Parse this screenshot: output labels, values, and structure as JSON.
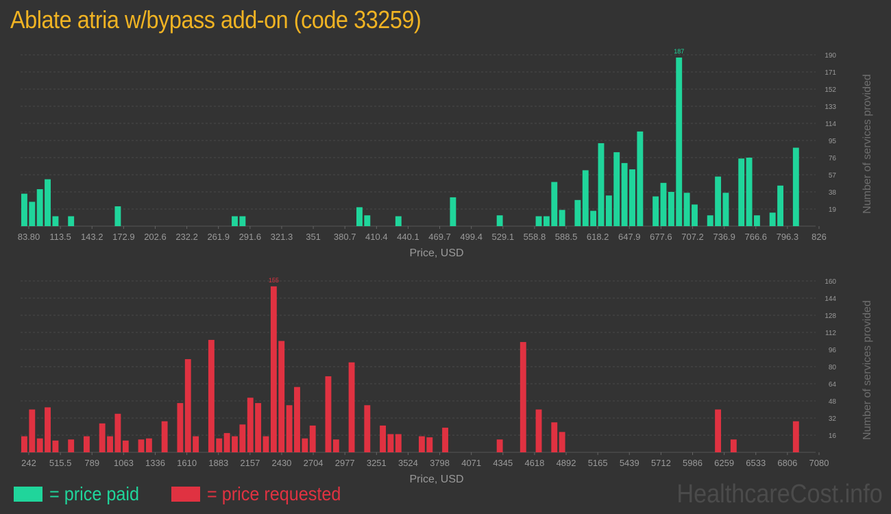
{
  "title": "Ablate atria w/bypass add-on (code 33259)",
  "colors": {
    "paid": "#20d59b",
    "requested": "#e03241",
    "title": "#f0b323",
    "axis_text": "#9a9a9a"
  },
  "legend": {
    "paid_label": "= price paid",
    "requested_label": "= price requested"
  },
  "watermark": "HealthcareCost.info",
  "chart_data": [
    {
      "type": "bar",
      "name": "price-paid",
      "xlabel": "Price, USD",
      "ylabel": "Number of services provided",
      "ylim": [
        0,
        190
      ],
      "yticks": [
        "19",
        "38",
        "57",
        "76",
        "95",
        "114",
        "133",
        "152",
        "171",
        "190"
      ],
      "xtick_labels": [
        "83.80",
        "113.5",
        "143.2",
        "172.9",
        "202.6",
        "232.2",
        "261.9",
        "291.6",
        "321.3",
        "351",
        "380.7",
        "410.4",
        "440.1",
        "469.7",
        "499.4",
        "529.1",
        "558.8",
        "588.5",
        "618.2",
        "647.9",
        "677.6",
        "707.2",
        "736.9",
        "766.6",
        "796.3",
        "826"
      ],
      "bin_count": 102,
      "peak_label": "187",
      "bars": [
        [
          0,
          36
        ],
        [
          1,
          27
        ],
        [
          2,
          41
        ],
        [
          3,
          52
        ],
        [
          4,
          11
        ],
        [
          6,
          11
        ],
        [
          12,
          22
        ],
        [
          27,
          11
        ],
        [
          28,
          11
        ],
        [
          43,
          21
        ],
        [
          44,
          12
        ],
        [
          48,
          11
        ],
        [
          55,
          32
        ],
        [
          61,
          12
        ],
        [
          66,
          11
        ],
        [
          67,
          11
        ],
        [
          68,
          49
        ],
        [
          69,
          18
        ],
        [
          71,
          29
        ],
        [
          72,
          62
        ],
        [
          73,
          17
        ],
        [
          74,
          92
        ],
        [
          75,
          34
        ],
        [
          76,
          82
        ],
        [
          77,
          70
        ],
        [
          78,
          63
        ],
        [
          79,
          105
        ],
        [
          81,
          33
        ],
        [
          82,
          48
        ],
        [
          83,
          38
        ],
        [
          84,
          187
        ],
        [
          85,
          37
        ],
        [
          86,
          24
        ],
        [
          88,
          12
        ],
        [
          89,
          55
        ],
        [
          90,
          37
        ],
        [
          92,
          75
        ],
        [
          93,
          76
        ],
        [
          94,
          12
        ],
        [
          96,
          15
        ],
        [
          97,
          45
        ],
        [
          99,
          87
        ]
      ]
    },
    {
      "type": "bar",
      "name": "price-requested",
      "xlabel": "Price, USD",
      "ylabel": "Number of services provided",
      "ylim": [
        0,
        160
      ],
      "yticks": [
        "16",
        "32",
        "48",
        "64",
        "80",
        "96",
        "112",
        "128",
        "144",
        "160"
      ],
      "xtick_labels": [
        "242",
        "515.5",
        "789",
        "1063",
        "1336",
        "1610",
        "1883",
        "2157",
        "2430",
        "2704",
        "2977",
        "3251",
        "3524",
        "3798",
        "4071",
        "4345",
        "4618",
        "4892",
        "5165",
        "5439",
        "5712",
        "5986",
        "6259",
        "6533",
        "6806",
        "7080"
      ],
      "bin_count": 102,
      "peak_label": "155",
      "bars": [
        [
          0,
          15
        ],
        [
          1,
          40
        ],
        [
          2,
          13
        ],
        [
          3,
          42
        ],
        [
          4,
          11
        ],
        [
          6,
          12
        ],
        [
          8,
          15
        ],
        [
          10,
          27
        ],
        [
          11,
          15
        ],
        [
          12,
          36
        ],
        [
          13,
          11
        ],
        [
          15,
          12
        ],
        [
          16,
          13
        ],
        [
          18,
          29
        ],
        [
          20,
          46
        ],
        [
          21,
          87
        ],
        [
          22,
          15
        ],
        [
          24,
          105
        ],
        [
          25,
          13
        ],
        [
          26,
          18
        ],
        [
          27,
          15
        ],
        [
          28,
          26
        ],
        [
          29,
          51
        ],
        [
          30,
          46
        ],
        [
          31,
          15
        ],
        [
          32,
          155
        ],
        [
          33,
          104
        ],
        [
          34,
          44
        ],
        [
          35,
          61
        ],
        [
          36,
          13
        ],
        [
          37,
          25
        ],
        [
          39,
          71
        ],
        [
          40,
          12
        ],
        [
          42,
          84
        ],
        [
          44,
          44
        ],
        [
          46,
          25
        ],
        [
          47,
          17
        ],
        [
          48,
          17
        ],
        [
          51,
          15
        ],
        [
          52,
          14
        ],
        [
          54,
          23
        ],
        [
          61,
          12
        ],
        [
          64,
          103
        ],
        [
          66,
          40
        ],
        [
          68,
          28
        ],
        [
          69,
          19
        ],
        [
          89,
          40
        ],
        [
          91,
          12
        ],
        [
          99,
          29
        ]
      ]
    }
  ]
}
